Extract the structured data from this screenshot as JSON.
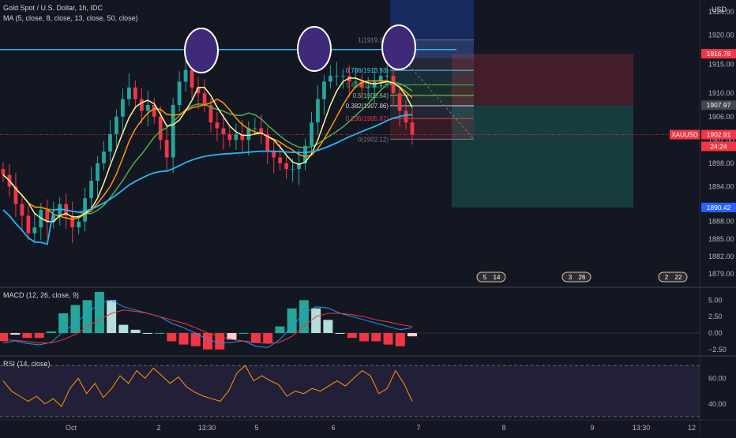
{
  "header": {
    "title": "Gold Spot / U.S. Dollar, 1h, IDC",
    "ma_legend": "MA (5, close, 8, close, 13, close, 50, close)",
    "currency": "USD"
  },
  "panels": {
    "macd_label": "MACD (12, 26, close, 9)",
    "rsi_label": "RSI (14, close)"
  },
  "price_axis": {
    "ticks": [
      "1924.00",
      "1920.00",
      "1915.00",
      "1910.00",
      "1906.00",
      "1902.00",
      "1898.00",
      "1894.00",
      "1890.00",
      "1888.00",
      "1885.00",
      "1882.00",
      "1879.00"
    ],
    "badges": [
      {
        "label": "1916.78",
        "color": "#f23645"
      },
      {
        "label": "1907.97",
        "color": "#434651"
      },
      {
        "label": "1902.91",
        "color": "#f23645"
      },
      {
        "label": "24:24",
        "color": "#f23645"
      },
      {
        "label": "1890.42",
        "color": "#2962ff"
      }
    ],
    "symbol_tag": "XAUUSD"
  },
  "macd_axis": {
    "ticks": [
      "5.00",
      "2.50",
      "0.00",
      "−2.50"
    ]
  },
  "rsi_axis": {
    "ticks": [
      "60.00",
      "40.00"
    ]
  },
  "time_axis": {
    "ticks": [
      "Oct",
      "2",
      "13:30",
      "5",
      "6",
      "7",
      "8",
      "9",
      "13:30",
      "12"
    ]
  },
  "fib_levels": [
    {
      "label": "1(1919.15)",
      "color": "#787b86"
    },
    {
      "label": "0.786(1913.93)",
      "color": "#4dd0e1"
    },
    {
      "label": "0.618(1911.43)",
      "color": "#4caf50"
    },
    {
      "label": "0.5(1909.64)",
      "color": "#81c784"
    },
    {
      "label": "0.382(1907.86)",
      "color": "#d1d4dc"
    },
    {
      "label": "0.236(1905.67)",
      "color": "#f23645"
    },
    {
      "label": "0(1902.12)",
      "color": "#787b86"
    }
  ],
  "events": [
    {
      "label": "5",
      "badge": "14"
    },
    {
      "label": "3",
      "badge": "26"
    },
    {
      "label": "2",
      "badge": "22"
    }
  ],
  "colors": {
    "up": "#26a69a",
    "down": "#f23645",
    "ma5": "#fff59d",
    "ma8": "#ff9800",
    "ma13": "#4caf50",
    "ma50": "#29b6f6",
    "macd": "#2196f3",
    "signal": "#f23645",
    "rsi": "#ff9800",
    "resistance": "#29b6f6",
    "highlight": "#3f2a7a"
  },
  "chart_data": [
    {
      "type": "candlestick",
      "title": "Gold Spot / U.S. Dollar, 1h, IDC",
      "ylim": [
        1877,
        1926
      ],
      "x_ticks": [
        "Oct",
        "2",
        "13:30",
        "5",
        "6",
        "7",
        "8",
        "9",
        "13:30",
        "12"
      ],
      "series": [
        {
          "name": "XAUUSD",
          "close": [
            1896,
            1894,
            1891,
            1889,
            1886,
            1887,
            1890,
            1888,
            1889,
            1891,
            1889,
            1887,
            1888,
            1892,
            1895,
            1898,
            1900,
            1903,
            1906,
            1909,
            1911,
            1909,
            1907,
            1908,
            1906,
            1902,
            1899,
            1908,
            1912,
            1914,
            1911,
            1910,
            1908,
            1905,
            1904,
            1903,
            1902,
            1903,
            1902,
            1904,
            1904,
            1903,
            1900,
            1899,
            1898,
            1897,
            1897,
            1898,
            1901,
            1905,
            1909,
            1912,
            1913,
            1913,
            1913,
            1912,
            1912,
            1911,
            1911,
            1912,
            1913,
            1913,
            1910,
            1907,
            1905,
            1902.9
          ]
        }
      ],
      "resistance_level": 1917.5,
      "position": {
        "entry": 1907.97,
        "stop": 1916.78,
        "target": 1890.42
      },
      "last_price": 1902.91,
      "annotation": "three peaks circled near 1917"
    },
    {
      "type": "line",
      "title": "MACD (12, 26, close, 9)",
      "ylim": [
        -3,
        6
      ],
      "series": [
        {
          "name": "MACD",
          "values": [
            -1.5,
            -1.2,
            -1.6,
            -1.8,
            -1.4,
            0.2,
            1.5,
            3.0,
            4.5,
            5.0,
            4.0,
            3.5,
            3.0,
            2.5,
            1.5,
            0.8,
            0.0,
            -1.0,
            -1.5,
            -1.4,
            -1.2,
            -2.0,
            -2.2,
            -1.0,
            1.0,
            3.0,
            4.0,
            3.8,
            3.0,
            2.5,
            2.0,
            1.5,
            1.0,
            0.5,
            0.8
          ]
        },
        {
          "name": "Signal",
          "values": [
            -1.0,
            -1.1,
            -1.3,
            -1.5,
            -1.5,
            -1.0,
            -0.2,
            1.0,
            2.0,
            3.0,
            3.5,
            3.3,
            3.0,
            2.5,
            2.0,
            1.5,
            0.8,
            0.0,
            -0.5,
            -1.0,
            -1.2,
            -1.4,
            -1.6,
            -1.4,
            -0.5,
            1.0,
            2.5,
            3.0,
            3.0,
            2.8,
            2.5,
            2.0,
            1.7,
            1.3,
            1.0
          ]
        }
      ]
    },
    {
      "type": "line",
      "title": "RSI (14, close)",
      "ylim": [
        30,
        75
      ],
      "guides": [
        70,
        30
      ],
      "series": [
        {
          "name": "RSI",
          "values": [
            58,
            50,
            46,
            42,
            46,
            40,
            44,
            38,
            52,
            60,
            48,
            56,
            45,
            52,
            62,
            56,
            66,
            60,
            68,
            62,
            56,
            61,
            53,
            49,
            46,
            44,
            42,
            50,
            64,
            70,
            58,
            62,
            58,
            55,
            46,
            50,
            48,
            52,
            50,
            54,
            58,
            54,
            60,
            66,
            62,
            48,
            52,
            66,
            56,
            42
          ]
        }
      ]
    }
  ]
}
